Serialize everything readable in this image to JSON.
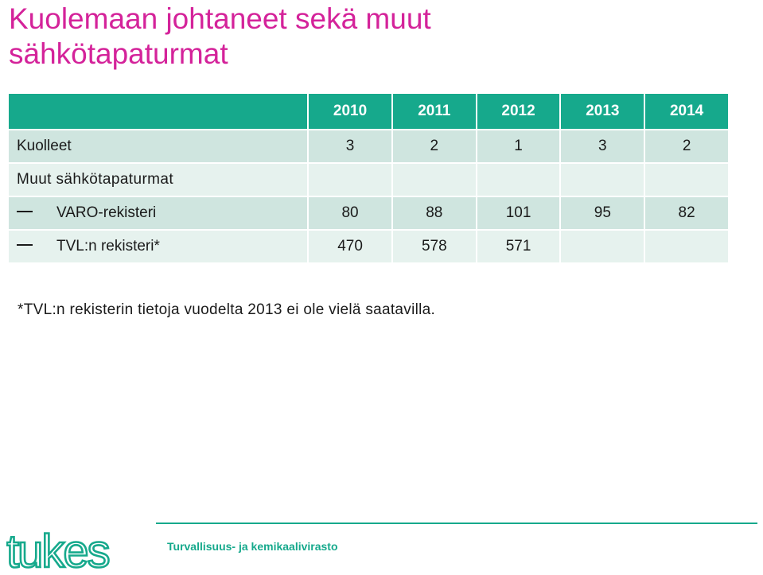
{
  "title": {
    "line1": "Kuolemaan johtaneet sekä muut",
    "line2": "sähkötapaturmat"
  },
  "table": {
    "years": [
      "2010",
      "2011",
      "2012",
      "2013",
      "2014"
    ],
    "rows": [
      {
        "label": "Kuolleet",
        "values": [
          "3",
          "2",
          "1",
          "3",
          "2"
        ]
      },
      {
        "label": "Muut sähkötapaturmat",
        "values": [
          "",
          "",
          "",
          "",
          ""
        ]
      },
      {
        "label": "VARO-rekisteri",
        "values": [
          "80",
          "88",
          "101",
          "95",
          "82"
        ]
      },
      {
        "label": "TVL:n rekisteri*",
        "values": [
          "470",
          "578",
          "571",
          "",
          ""
        ]
      }
    ]
  },
  "footnote": "*TVL:n rekisterin tietoja vuodelta 2013 ei ole vielä saatavilla.",
  "footer": {
    "logo_text": "tukes",
    "agency": "Turvallisuus- ja kemikaalivirasto"
  },
  "colors": {
    "title": "#d4239a",
    "accent": "#16a98c",
    "row_main": "#cfe5df",
    "row_alt": "#e6f2ee"
  }
}
